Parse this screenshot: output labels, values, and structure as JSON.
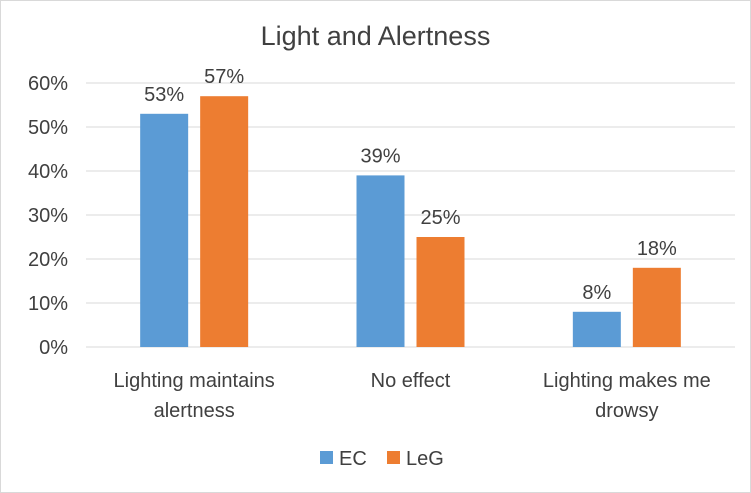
{
  "chart_data": {
    "type": "bar",
    "title": "Light and Alertness",
    "categories": [
      [
        "Lighting maintains",
        "alertness"
      ],
      [
        "No effect"
      ],
      [
        "Lighting makes me",
        "drowsy"
      ]
    ],
    "series": [
      {
        "name": "EC",
        "values": [
          53,
          39,
          8
        ],
        "labels": [
          "53%",
          "39%",
          "8%"
        ],
        "color": "#5B9BD5"
      },
      {
        "name": "LeG",
        "values": [
          57,
          25,
          18
        ],
        "labels": [
          "57%",
          "25%",
          "18%"
        ],
        "color": "#ED7D31"
      }
    ],
    "ylim": [
      0,
      60
    ],
    "yticks": [
      0,
      10,
      20,
      30,
      40,
      50,
      60
    ],
    "ytick_labels": [
      "0%",
      "10%",
      "20%",
      "30%",
      "40%",
      "50%",
      "60%"
    ],
    "grid": true,
    "gridline_color": "#d9d9d9",
    "legend_position": "bottom"
  }
}
